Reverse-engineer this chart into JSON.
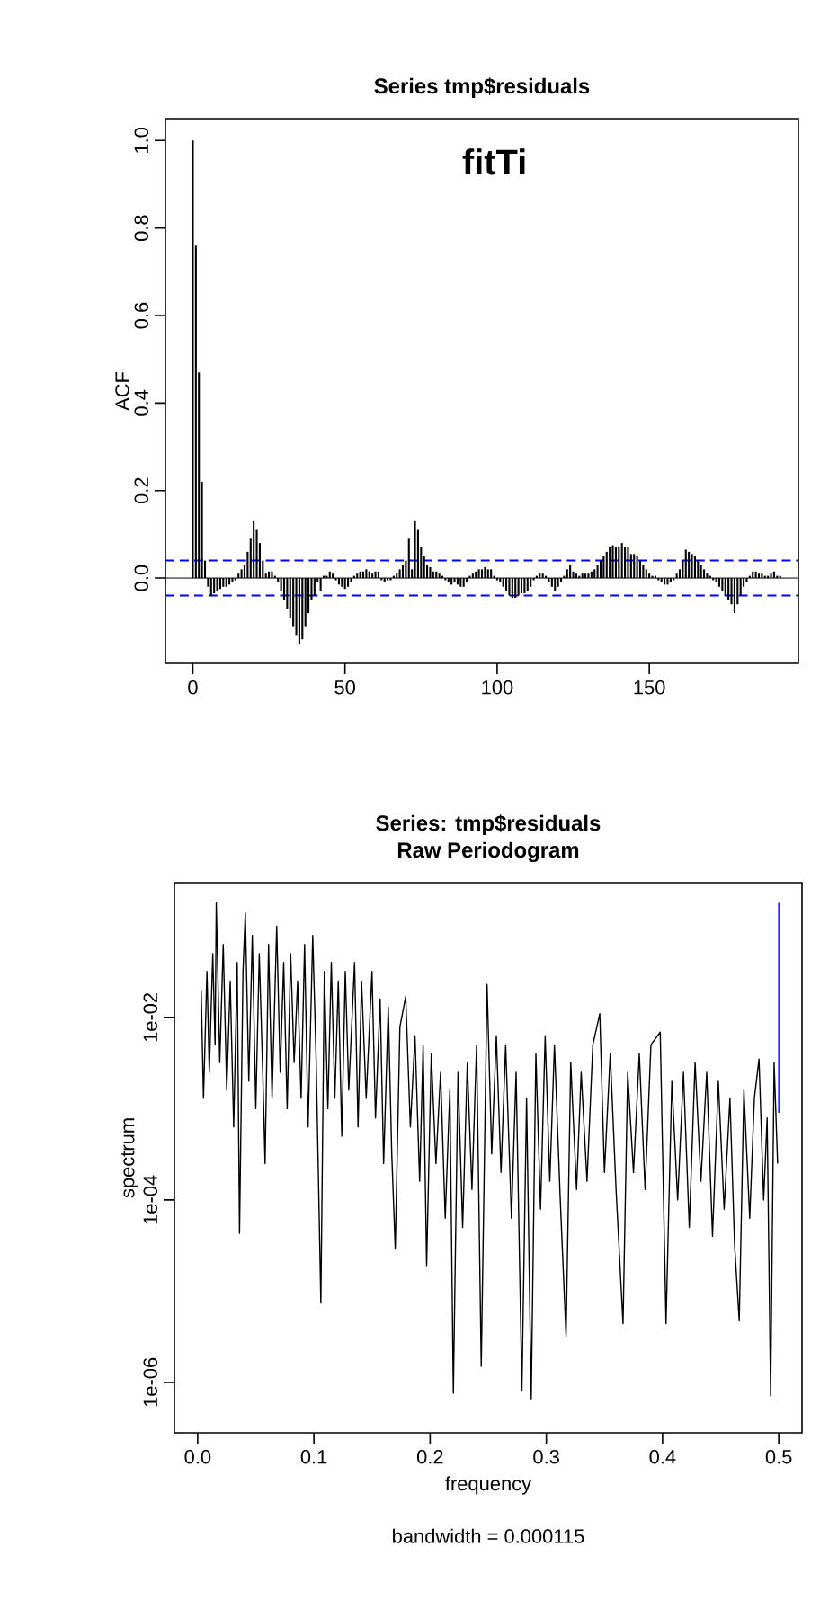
{
  "chart_data": [
    {
      "type": "bar",
      "title": "Series  tmp$residuals",
      "ylabel": "ACF",
      "annotations": [
        "fitTi"
      ],
      "x": [
        0,
        1,
        2,
        3,
        4,
        5,
        6,
        7,
        8,
        9,
        10,
        11,
        12,
        13,
        14,
        15,
        16,
        17,
        18,
        19,
        20,
        21,
        22,
        23,
        24,
        25,
        26,
        27,
        28,
        29,
        30,
        31,
        32,
        33,
        34,
        35,
        36,
        37,
        38,
        39,
        40,
        41,
        42,
        43,
        44,
        45,
        46,
        47,
        48,
        49,
        50,
        51,
        52,
        53,
        54,
        55,
        56,
        57,
        58,
        59,
        60,
        61,
        62,
        63,
        64,
        65,
        66,
        67,
        68,
        69,
        70,
        71,
        72,
        73,
        74,
        75,
        76,
        77,
        78,
        79,
        80,
        81,
        82,
        83,
        84,
        85,
        86,
        87,
        88,
        89,
        90,
        91,
        92,
        93,
        94,
        95,
        96,
        97,
        98,
        99,
        100,
        101,
        102,
        103,
        104,
        105,
        106,
        107,
        108,
        109,
        110,
        111,
        112,
        113,
        114,
        115,
        116,
        117,
        118,
        119,
        120,
        121,
        122,
        123,
        124,
        125,
        126,
        127,
        128,
        129,
        130,
        131,
        132,
        133,
        134,
        135,
        136,
        137,
        138,
        139,
        140,
        141,
        142,
        143,
        144,
        145,
        146,
        147,
        148,
        149,
        150,
        151,
        152,
        153,
        154,
        155,
        156,
        157,
        158,
        159,
        160,
        161,
        162,
        163,
        164,
        165,
        166,
        167,
        168,
        169,
        170,
        171,
        172,
        173,
        174,
        175,
        176,
        177,
        178,
        179,
        180,
        181,
        182,
        183,
        184,
        185,
        186,
        187,
        188,
        189,
        190,
        191,
        192,
        193
      ],
      "series": [
        {
          "color": "#000000",
          "values": [
            1.0,
            0.76,
            0.47,
            0.22,
            0.04,
            -0.02,
            -0.04,
            -0.035,
            -0.03,
            -0.025,
            -0.02,
            -0.02,
            -0.015,
            -0.01,
            -0.005,
            0.01,
            0.02,
            0.03,
            0.06,
            0.09,
            0.13,
            0.11,
            0.08,
            0.04,
            0.01,
            0.015,
            0.015,
            0.005,
            -0.01,
            -0.03,
            -0.05,
            -0.07,
            -0.09,
            -0.11,
            -0.13,
            -0.15,
            -0.14,
            -0.11,
            -0.08,
            -0.05,
            -0.04,
            -0.01,
            -0.03,
            0.005,
            0.005,
            0.015,
            0.01,
            -0.005,
            -0.015,
            -0.02,
            -0.025,
            -0.02,
            -0.01,
            0.005,
            0.01,
            0.015,
            0.015,
            0.02,
            0.015,
            0.01,
            0.015,
            0.015,
            -0.005,
            -0.01,
            -0.005,
            -0.005,
            0.005,
            0.01,
            0.02,
            0.03,
            0.04,
            0.09,
            0.02,
            0.13,
            0.11,
            0.07,
            0.05,
            0.03,
            0.025,
            0.015,
            0.015,
            0.01,
            0.005,
            -0.005,
            -0.01,
            -0.015,
            -0.01,
            -0.015,
            -0.02,
            -0.02,
            -0.01,
            0.005,
            0.01,
            0.015,
            0.02,
            0.02,
            0.025,
            0.02,
            0.02,
            0.005,
            -0.005,
            -0.01,
            -0.02,
            -0.03,
            -0.04,
            -0.045,
            -0.045,
            -0.04,
            -0.035,
            -0.035,
            -0.03,
            -0.02,
            -0.005,
            0.005,
            0.01,
            0.01,
            0.005,
            -0.01,
            -0.02,
            -0.03,
            -0.02,
            -0.01,
            0.005,
            0.02,
            0.03,
            0.015,
            0.01,
            0.005,
            0.01,
            0.01,
            0.01,
            0.015,
            0.02,
            0.03,
            0.04,
            0.05,
            0.06,
            0.07,
            0.075,
            0.07,
            0.07,
            0.08,
            0.07,
            0.07,
            0.055,
            0.055,
            0.05,
            0.04,
            0.03,
            0.02,
            0.01,
            0.005,
            0.005,
            -0.005,
            -0.01,
            -0.015,
            -0.015,
            -0.01,
            -0.005,
            0.01,
            0.02,
            0.04,
            0.065,
            0.06,
            0.055,
            0.05,
            0.04,
            0.03,
            0.02,
            0.01,
            0.005,
            -0.005,
            -0.01,
            -0.02,
            -0.03,
            -0.04,
            -0.05,
            -0.06,
            -0.08,
            -0.06,
            -0.04,
            -0.02,
            -0.01,
            0.005,
            0.015,
            0.015,
            0.01,
            0.01,
            0.005,
            0.005,
            0.01,
            0.015,
            0.005,
            0.005
          ]
        }
      ],
      "xlim": [
        -9,
        199
      ],
      "xticks": [
        0,
        50,
        100,
        150
      ],
      "ylim": [
        -0.195,
        1.05
      ],
      "yticks": [
        {
          "value": 0,
          "label": "0.0"
        },
        0.2,
        0.4,
        0.6,
        0.8,
        {
          "value": 1,
          "label": "1.0"
        }
      ],
      "ref_lines": [
        {
          "axis": "y",
          "value": 0,
          "color": "#000000",
          "line_style": "solid"
        },
        {
          "axis": "y",
          "value": 0.04,
          "color": "#0000ff",
          "line_style": "dashed"
        },
        {
          "axis": "y",
          "value": -0.04,
          "color": "#0000ff",
          "line_style": "dashed"
        }
      ]
    },
    {
      "type": "line",
      "title": "Series: tmp$residuals",
      "subtitle": "Raw Periodogram",
      "xlabel": "frequency",
      "ylabel": "spectrum",
      "annotations": [
        "bandwidth = 0.000115"
      ],
      "log": "y",
      "series": [
        {
          "color": "#000000",
          "x": [
            0.003,
            0.005,
            0.008,
            0.01,
            0.013,
            0.015,
            0.016,
            0.019,
            0.022,
            0.025,
            0.028,
            0.031,
            0.034,
            0.036,
            0.039,
            0.041,
            0.044,
            0.047,
            0.05,
            0.053,
            0.056,
            0.058,
            0.061,
            0.064,
            0.068,
            0.071,
            0.074,
            0.077,
            0.08,
            0.083,
            0.086,
            0.089,
            0.092,
            0.095,
            0.099,
            0.102,
            0.106,
            0.109,
            0.112,
            0.115,
            0.118,
            0.121,
            0.124,
            0.127,
            0.13,
            0.135,
            0.138,
            0.141,
            0.145,
            0.15,
            0.153,
            0.157,
            0.16,
            0.164,
            0.167,
            0.17,
            0.174,
            0.179,
            0.183,
            0.187,
            0.191,
            0.194,
            0.197,
            0.201,
            0.205,
            0.209,
            0.213,
            0.217,
            0.22,
            0.224,
            0.228,
            0.232,
            0.236,
            0.24,
            0.244,
            0.249,
            0.253,
            0.257,
            0.261,
            0.265,
            0.27,
            0.274,
            0.279,
            0.283,
            0.287,
            0.291,
            0.295,
            0.299,
            0.303,
            0.307,
            0.312,
            0.317,
            0.321,
            0.326,
            0.33,
            0.335,
            0.34,
            0.346,
            0.35,
            0.355,
            0.36,
            0.366,
            0.37,
            0.375,
            0.38,
            0.385,
            0.39,
            0.398,
            0.403,
            0.408,
            0.413,
            0.418,
            0.423,
            0.428,
            0.433,
            0.438,
            0.443,
            0.448,
            0.453,
            0.458,
            0.462,
            0.466,
            0.47,
            0.475,
            0.479,
            0.483,
            0.487,
            0.49,
            0.493,
            0.496,
            0.499
          ],
          "values": [
            0.02,
            0.0013,
            0.032,
            0.0025,
            0.05,
            0.005,
            0.18,
            0.0032,
            0.063,
            0.0016,
            0.025,
            0.00063,
            0.04,
            4.3e-05,
            0.032,
            0.14,
            0.002,
            0.079,
            0.001,
            0.05,
            0.0025,
            0.00025,
            0.063,
            0.0013,
            0.1,
            0.0025,
            0.04,
            0.001,
            0.05,
            0.0032,
            0.025,
            0.0013,
            0.063,
            0.00063,
            0.079,
            0.0032,
            7.4e-06,
            0.032,
            0.001,
            0.04,
            0.0013,
            0.025,
            0.0005,
            0.032,
            0.0016,
            0.04,
            0.00063,
            0.025,
            0.0013,
            0.032,
            0.00079,
            0.016,
            0.00025,
            0.013,
            0.00032,
            2.9e-05,
            0.0079,
            0.017,
            0.00063,
            0.0063,
            0.00016,
            0.005,
            1.9e-05,
            0.004,
            0.00025,
            0.0025,
            6.3e-05,
            0.0016,
            7.6e-07,
            0.0025,
            5e-05,
            0.0032,
            0.00013,
            0.005,
            1.5e-06,
            0.023,
            0.00032,
            0.0063,
            0.0002,
            0.005,
            6.3e-05,
            0.0025,
            8.1e-07,
            0.0013,
            6.6e-07,
            0.004,
            7.9e-05,
            0.0063,
            0.00016,
            0.005,
            0.0001,
            3.2e-06,
            0.0032,
            0.00013,
            0.0025,
            0.00016,
            0.005,
            0.011,
            0.0002,
            0.004,
            0.00013,
            4.4e-06,
            0.0025,
            0.0002,
            0.004,
            0.00013,
            0.005,
            0.0069,
            4.4e-06,
            0.002,
            0.0001,
            0.0025,
            5e-05,
            0.0032,
            0.00016,
            0.0025,
            4e-05,
            0.002,
            7.9e-05,
            0.0013,
            3.2e-05,
            4.7e-06,
            0.0016,
            6.3e-05,
            0.0013,
            0.0035,
            0.0001,
            0.00079,
            7.1e-07,
            0.0032,
            0.00025
          ]
        },
        {
          "color": "#0000ff",
          "x": [
            0.5,
            0.5
          ],
          "values": [
            0.18,
            0.0009
          ]
        }
      ],
      "xlim": [
        -0.02,
        0.52
      ],
      "xticks": [
        {
          "value": 0,
          "label": "0.0"
        },
        0.1,
        0.2,
        0.3,
        0.4,
        0.5
      ],
      "ylim": [
        2.8e-07,
        0.3
      ],
      "yticks": [
        {
          "value": 1e-06,
          "label": "1e-06"
        },
        {
          "value": 0.0001,
          "label": "1e-04"
        },
        {
          "value": 0.01,
          "label": "1e-02"
        }
      ]
    }
  ]
}
